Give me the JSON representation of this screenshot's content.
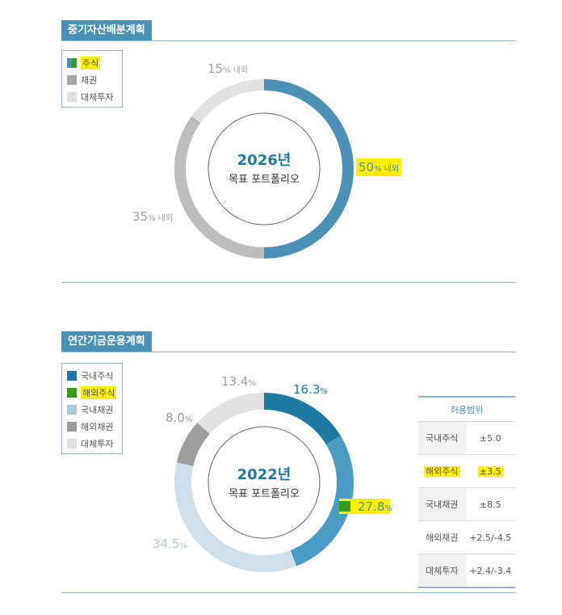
{
  "section1": {
    "title": "중기자산배분계획",
    "legend": [
      {
        "label": "주식",
        "color": "#4a91b5",
        "highlight": true
      },
      {
        "label": "채권",
        "color": "#a6a6a6",
        "highlight": false
      },
      {
        "label": "대체투자",
        "color": "#dedede",
        "highlight": false
      }
    ],
    "center": {
      "year": "2026년",
      "subtitle": "목표 포트폴리오"
    }
  },
  "section2": {
    "title": "연간기금운용계획",
    "legend": [
      {
        "label": "국내주식",
        "color": "#1f7aa3",
        "highlight": false
      },
      {
        "label": "해외주식",
        "color": "#3a9a1a",
        "highlight": true
      },
      {
        "label": "국내채권",
        "color": "#a9c9de",
        "highlight": false
      },
      {
        "label": "해외채권",
        "color": "#9c9c9c",
        "highlight": false
      },
      {
        "label": "대체투자",
        "color": "#dedede",
        "highlight": false
      }
    ],
    "center": {
      "year": "2022년",
      "subtitle": "목표 포트폴리오"
    },
    "range_table": {
      "header": "허용범위",
      "rows": [
        {
          "name": "국내주식",
          "value": "±5.0",
          "highlight": false
        },
        {
          "name": "해외주식",
          "value": "±3.5",
          "highlight": true
        },
        {
          "name": "국내채권",
          "value": "±8.5",
          "highlight": false
        },
        {
          "name": "해외채권",
          "value": "+2.5/-4.5",
          "highlight": false
        },
        {
          "name": "대체투자",
          "value": "+2.4/-3.4",
          "highlight": false
        }
      ]
    }
  },
  "chart_data": [
    {
      "type": "pie",
      "categories": [
        "주식",
        "채권",
        "대체투자"
      ],
      "values": [
        50,
        35,
        15
      ],
      "value_labels": [
        {
          "num": "50",
          "unit": "% 내외"
        },
        {
          "num": "35",
          "unit": "% 내외"
        },
        {
          "num": "15",
          "unit": "% 내외"
        }
      ],
      "colors": [
        "#4a91b5",
        "#bdbdbd",
        "#e2e2e2"
      ]
    },
    {
      "type": "pie",
      "categories": [
        "국내주식",
        "해외주식",
        "국내채권",
        "해외채권",
        "대체투자"
      ],
      "values": [
        16.3,
        27.8,
        34.5,
        8.0,
        13.4
      ],
      "value_labels": [
        {
          "num": "16.3",
          "unit": "%"
        },
        {
          "num": "27.8",
          "unit": "%"
        },
        {
          "num": "34.5",
          "unit": "%"
        },
        {
          "num": "8.0",
          "unit": "%"
        },
        {
          "num": "13.4",
          "unit": "%"
        }
      ],
      "colors": [
        "#1f7aa3",
        "#4b9bc4",
        "#cfe0ec",
        "#9e9e9e",
        "#e2e2e2"
      ]
    }
  ]
}
